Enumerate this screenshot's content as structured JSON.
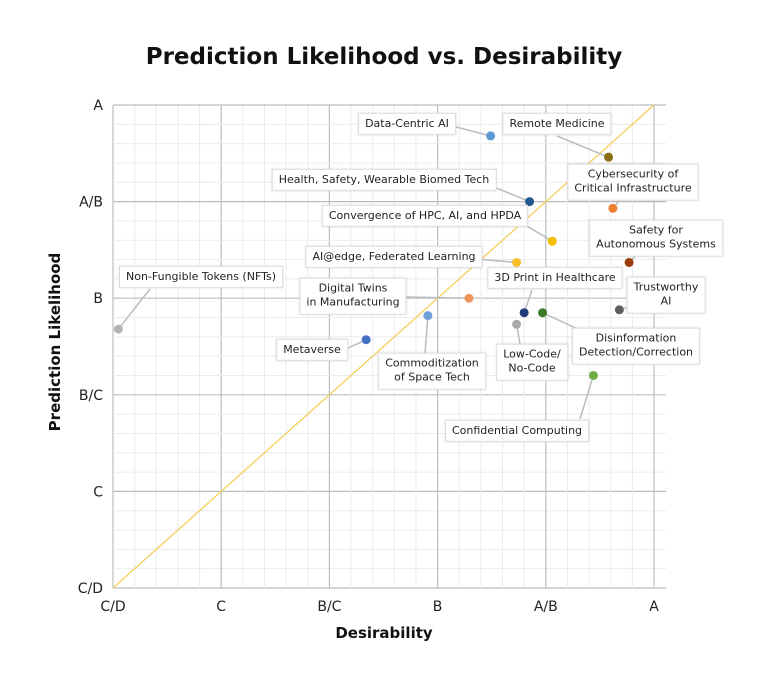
{
  "chart_data": {
    "type": "scatter",
    "title": "Prediction Likelihood vs. Desirability",
    "xlabel": "Desirability",
    "ylabel": "Prediction Likelihood",
    "x_ticks": [
      "C/D",
      "C",
      "B/C",
      "B",
      "A/B",
      "A"
    ],
    "y_ticks": [
      "C/D",
      "C",
      "B/C",
      "B",
      "A/B",
      "A"
    ],
    "scale_note": "tick index 0=C/D … 5=A",
    "xlim": [
      0,
      5
    ],
    "ylim": [
      0,
      5
    ],
    "grid": true,
    "diagonal_color": "#f5cf5a",
    "points": [
      {
        "label": "Data-Centric AI",
        "x": 3.49,
        "y": 4.68,
        "color": "#5b9bd5"
      },
      {
        "label": "Remote Medicine",
        "x": 4.58,
        "y": 4.46,
        "color": "#8b6d12"
      },
      {
        "label": "Health, Safety, Wearable Biomed Tech",
        "x": 3.85,
        "y": 4.0,
        "color": "#245a8f"
      },
      {
        "label": "Cybersecurity of\nCritical Infrastructure",
        "x": 4.62,
        "y": 3.93,
        "color": "#ed7d31"
      },
      {
        "label": "Convergence of HPC, AI, and HPDA",
        "x": 4.06,
        "y": 3.59,
        "color": "#f5c000"
      },
      {
        "label": "Safety for\nAutonomous Systems",
        "x": 4.77,
        "y": 3.37,
        "color": "#9c3d0c"
      },
      {
        "label": "AI@edge, Federated Learning",
        "x": 3.73,
        "y": 3.37,
        "color": "#f7c02a"
      },
      {
        "label": "Non-Fungible Tokens (NFTs)",
        "x": 0.05,
        "y": 2.68,
        "color": "#b5b5b5"
      },
      {
        "label": "Digital Twins\nin Manufacturing",
        "x": 3.29,
        "y": 3.0,
        "color": "#f0955a"
      },
      {
        "label": "3D Print in Healthcare",
        "x": 3.8,
        "y": 2.85,
        "color": "#1f3d7a"
      },
      {
        "label": "Trustworthy\nAI",
        "x": 4.68,
        "y": 2.88,
        "color": "#5e5e5e"
      },
      {
        "label": "Disinformation\nDetection/Correction",
        "x": 3.97,
        "y": 2.85,
        "color": "#3f7a2a"
      },
      {
        "label": "Low-Code/\nNo-Code",
        "x": 3.73,
        "y": 2.73,
        "color": "#a9a9a9"
      },
      {
        "label": "Commoditization\nof Space Tech",
        "x": 2.91,
        "y": 2.82,
        "color": "#6f9fd8"
      },
      {
        "label": "Metaverse",
        "x": 2.34,
        "y": 2.57,
        "color": "#4472c4"
      },
      {
        "label": "Confidential Computing",
        "x": 4.44,
        "y": 2.2,
        "color": "#70ad47"
      }
    ]
  }
}
